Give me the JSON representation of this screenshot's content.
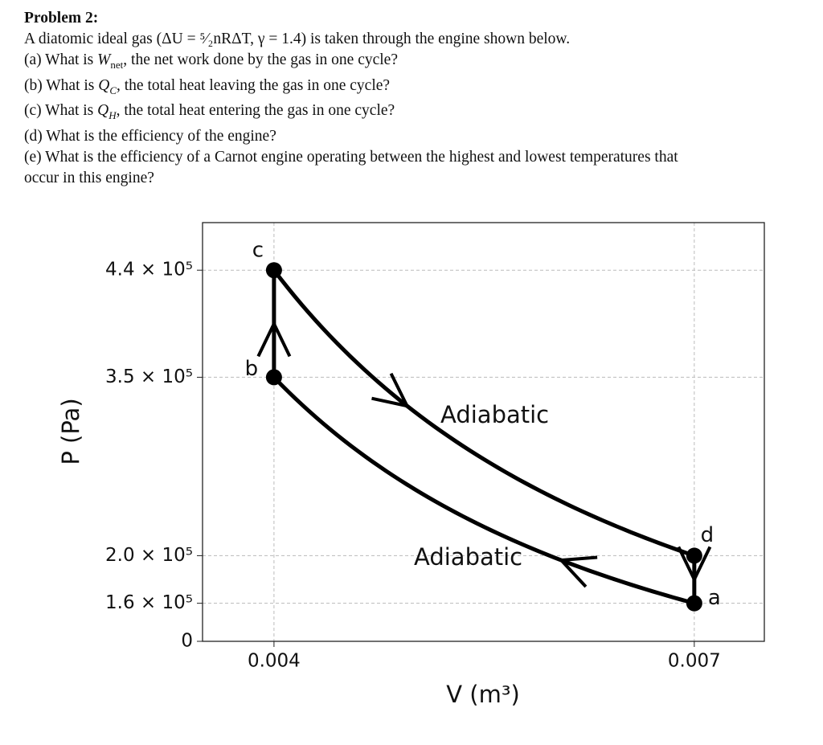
{
  "problem": {
    "heading": "Problem 2:",
    "intro": "A diatomic ideal gas (ΔU = ⁵⁄₂nRΔT, γ = 1.4) is taken through the engine shown below.",
    "questions": [
      {
        "prefix": "(a) What is ",
        "symbol": "W",
        "sub": "net",
        "rest": ", the net work done by the gas in one cycle?"
      },
      {
        "prefix": "(b) What is ",
        "symbol": "Q",
        "sub": "C",
        "rest": ", the total heat leaving the gas in one cycle?"
      },
      {
        "prefix": "(c) What is ",
        "symbol": "Q",
        "sub": "H",
        "rest": ", the total heat entering the gas in one cycle?"
      },
      {
        "prefix": "(d) What is the efficiency of the engine?"
      },
      {
        "prefix": "(e) What is the efficiency of a Carnot engine operating between the highest and lowest temperatures that"
      },
      {
        "prefix": "occur in this engine?"
      }
    ]
  },
  "chart_data": {
    "type": "scatter",
    "xlabel": "V (m³)",
    "ylabel": "P (Pa)",
    "points": {
      "labels": [
        "a",
        "b",
        "c",
        "d"
      ],
      "x": [
        0.007,
        0.004,
        0.004,
        0.007
      ],
      "y": [
        160000,
        350000,
        440000,
        200000
      ],
      "color": "#000000"
    },
    "annotations": [
      "Adiabatic",
      "Adiabatic"
    ],
    "xlim": [
      0.00349,
      0.0075
    ],
    "ylim": [
      128000,
      480000
    ],
    "xticks": [
      0.004,
      0.007
    ],
    "yticks": [
      {
        "value": 0,
        "label": "0"
      },
      {
        "value": 160000,
        "label": "1.6 × 10⁵"
      },
      {
        "value": 200000,
        "label": "2.0 × 10⁵"
      },
      {
        "value": 350000,
        "label": "3.5 × 10⁵"
      },
      {
        "value": 440000,
        "label": "4.4 × 10⁵"
      }
    ],
    "grid": true
  }
}
